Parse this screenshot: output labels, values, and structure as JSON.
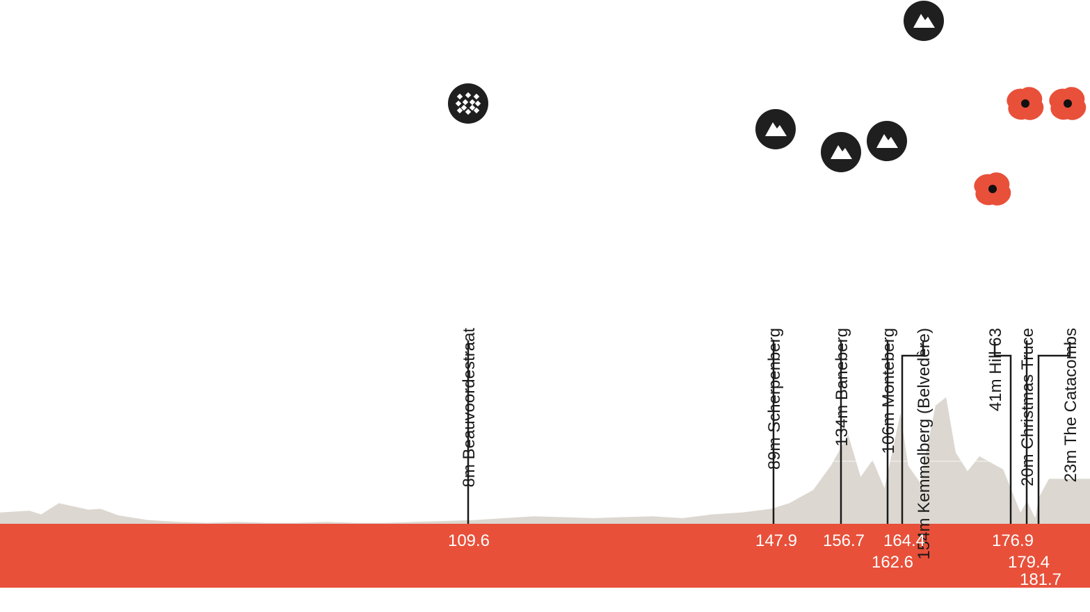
{
  "chart_data": {
    "type": "area",
    "title": "",
    "xlabel": "",
    "ylabel": "",
    "x_range_km": [
      0,
      181.7
    ],
    "y_range_m": [
      0,
      160
    ],
    "colors": {
      "profile_fill": "#dcd8d1",
      "baseline_band": "#e8503a",
      "marker_dark": "#1f1f1f",
      "marker_poppy": "#e8503a",
      "connector": "#1a1a1a",
      "km_text": "#ffffff"
    },
    "profile": {
      "x": [
        0,
        5,
        10,
        12,
        15,
        20,
        22,
        25,
        30,
        35,
        40,
        45,
        50,
        55,
        60,
        65,
        70,
        75,
        80,
        85,
        90,
        95,
        100,
        105,
        109.6,
        115,
        120,
        125,
        130,
        135,
        138,
        142,
        145,
        147.9,
        150,
        152,
        154,
        156.7,
        158,
        160,
        162.6,
        164.4,
        166,
        168,
        170,
        172,
        174,
        176.9,
        178,
        179.4,
        180,
        181.7
      ],
      "y": [
        18,
        12,
        14,
        10,
        22,
        15,
        16,
        9,
        4,
        2,
        1,
        2,
        1,
        1,
        2,
        1,
        1,
        2,
        3,
        4,
        6,
        8,
        7,
        6,
        7,
        8,
        6,
        10,
        12,
        16,
        22,
        36,
        62,
        95,
        50,
        68,
        38,
        118,
        62,
        44,
        126,
        135,
        76,
        56,
        72,
        65,
        58,
        12,
        24,
        6,
        28,
        48
      ]
    },
    "climbs": [
      {
        "km": 109.6,
        "km_label": "109.6",
        "label": "8m Beauvoordestraat",
        "type": "cobbles"
      },
      {
        "km": 147.9,
        "km_label": "147.9",
        "label": "89m Scherpenberg",
        "type": "climb"
      },
      {
        "km": 156.7,
        "km_label": "156.7",
        "label": "134m Baneberg",
        "type": "climb"
      },
      {
        "km": 162.6,
        "km_label": "162.6",
        "label": "106m Monteberg",
        "type": "climb"
      },
      {
        "km": 164.4,
        "km_label": "164.4",
        "label": "154m Kemmelberg (Belvedère)",
        "type": "climb"
      },
      {
        "km": 176.9,
        "km_label": "176.9",
        "label": "41m Hill 63",
        "type": "poppy"
      },
      {
        "km": 179.4,
        "km_label": "179.4",
        "label": "20m Christmas Truce",
        "type": "poppy"
      },
      {
        "km": 181.7,
        "km_label": "181.7",
        "label": "23m The Catacombs",
        "type": "poppy"
      }
    ]
  }
}
